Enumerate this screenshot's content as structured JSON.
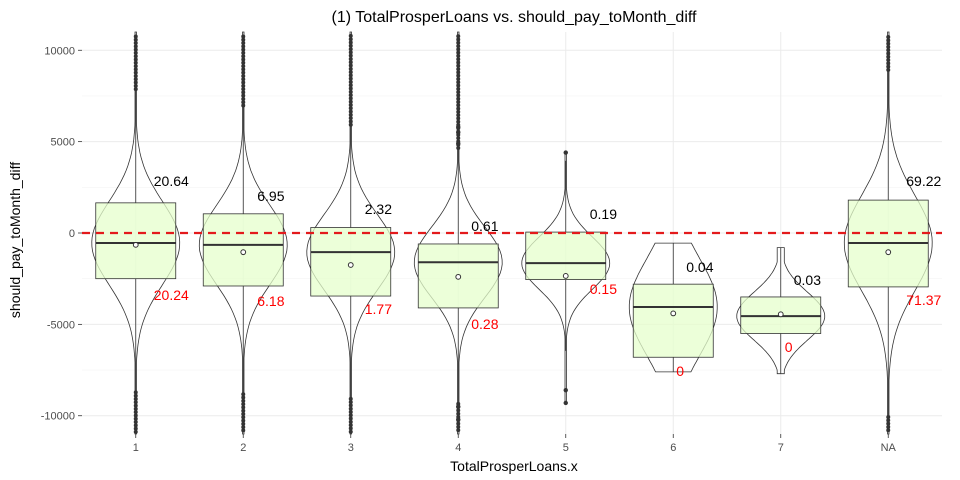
{
  "chart_data": {
    "type": "boxplot-violin",
    "title": "(1) TotalProsperLoans vs. should_pay_toMonth_diff",
    "xlabel": "TotalProsperLoans.x",
    "ylabel": "should_pay_toMonth_diff",
    "ylim": [
      -11000,
      11000
    ],
    "yticks": [
      -10000,
      -5000,
      0,
      5000,
      10000
    ],
    "reference_line": {
      "y": 0,
      "color": "#e31a1c",
      "style": "dashed"
    },
    "box_fill": "#e5ffcc",
    "categories": [
      "1",
      "2",
      "3",
      "4",
      "5",
      "6",
      "7",
      "NA"
    ],
    "groups": [
      {
        "category": "1",
        "q1": -2500,
        "median": -550,
        "q3": 1650,
        "mean": -650,
        "vmin": -11000,
        "vmax": 11000,
        "pct_above": "20.64",
        "pct_below": "20.24",
        "outliers": []
      },
      {
        "category": "2",
        "q1": -2900,
        "median": -650,
        "q3": 1050,
        "mean": -1050,
        "vmin": -11000,
        "vmax": 11000,
        "pct_above": "6.95",
        "pct_below": "6.18",
        "outliers": []
      },
      {
        "category": "3",
        "q1": -3450,
        "median": -1050,
        "q3": 300,
        "mean": -1750,
        "vmin": -11000,
        "vmax": 11000,
        "pct_above": "2.32",
        "pct_below": "1.77",
        "outliers": []
      },
      {
        "category": "4",
        "q1": -4100,
        "median": -1600,
        "q3": -600,
        "mean": -2400,
        "vmin": -11000,
        "vmax": 11000,
        "pct_above": "0.61",
        "pct_below": "0.28",
        "outliers": [
          5800,
          5500,
          4900,
          -9500,
          -10200
        ]
      },
      {
        "category": "5",
        "q1": -2550,
        "median": -1650,
        "q3": 50,
        "mean": -2350,
        "vmin": -9300,
        "vmax": 4400,
        "pct_above": "0.19",
        "pct_below": "0.15",
        "outliers": [
          4400,
          -8600,
          -9300
        ]
      },
      {
        "category": "6",
        "q1": -6800,
        "median": -4050,
        "q3": -2800,
        "mean": -4400,
        "vmin": -7600,
        "vmax": -550,
        "pct_above": "0.04",
        "pct_below": "0",
        "outliers": []
      },
      {
        "category": "7",
        "q1": -5500,
        "median": -4550,
        "q3": -3500,
        "mean": -4450,
        "vmin": -7700,
        "vmax": -800,
        "pct_above": "0.03",
        "pct_below": "0",
        "outliers": []
      },
      {
        "category": "NA",
        "q1": -2950,
        "median": -550,
        "q3": 1800,
        "mean": -1050,
        "vmin": -11000,
        "vmax": 11000,
        "pct_above": "69.22",
        "pct_below": "71.37",
        "outliers": []
      }
    ]
  }
}
